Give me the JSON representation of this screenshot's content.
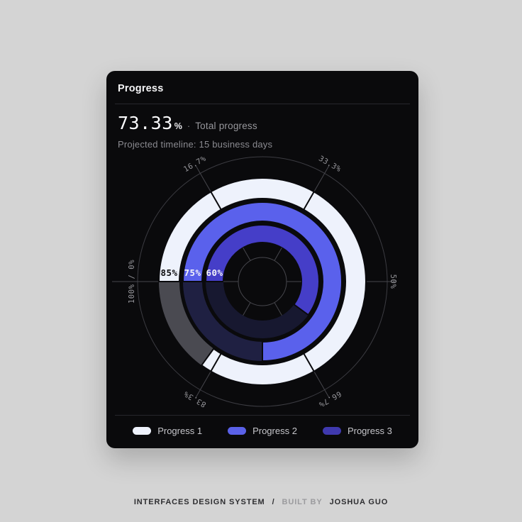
{
  "page": {
    "background": "#D4D4D4"
  },
  "card": {
    "title": "Progress"
  },
  "stats": {
    "total_value": "73.33",
    "unit": "%",
    "separator": "·",
    "total_label": "Total progress",
    "projected": "Projected timeline: 15 business days"
  },
  "chart_data": {
    "type": "radial-progress-rings",
    "total_percent": 73.33,
    "start_position": "left",
    "direction": "clockwise",
    "axis_ticks": [
      {
        "pct": 0,
        "label": "100% / 0%"
      },
      {
        "pct": 16.7,
        "label": "16.7%"
      },
      {
        "pct": 33.3,
        "label": "33.3%"
      },
      {
        "pct": 50,
        "label": "50%"
      },
      {
        "pct": 66.7,
        "label": "66.7%"
      },
      {
        "pct": 83.3,
        "label": "83.3%"
      }
    ],
    "series": [
      {
        "name": "Progress 1",
        "value": 85,
        "label": "85%",
        "color": "#EEF2FC",
        "track_color": "#4A4A51",
        "label_color": "#0E0E11"
      },
      {
        "name": "Progress 2",
        "value": 75,
        "label": "75%",
        "color": "#5A61EC",
        "track_color": "#1F2042",
        "label_color": "#F4F4FA"
      },
      {
        "name": "Progress 3",
        "value": 60,
        "label": "60%",
        "color": "#453EC8",
        "track_color": "#171830",
        "label_color": "#F4F4FA"
      }
    ],
    "colors": {
      "grid": "#47474D",
      "axis_circle": "#3C3C42",
      "tick_label": "#97979C",
      "cross_tick": "#0A0A0D"
    }
  },
  "legend": {
    "items": [
      {
        "label": "Progress 1",
        "color": "#EEF2FC"
      },
      {
        "label": "Progress 2",
        "color": "#5A61E8"
      },
      {
        "label": "Progress 3",
        "color": "#3F39AE"
      }
    ]
  },
  "footer": {
    "brand": "INTERFACES DESIGN SYSTEM",
    "slash": "/",
    "built_by": "BUILT BY",
    "author": "JOSHUA GUO"
  }
}
